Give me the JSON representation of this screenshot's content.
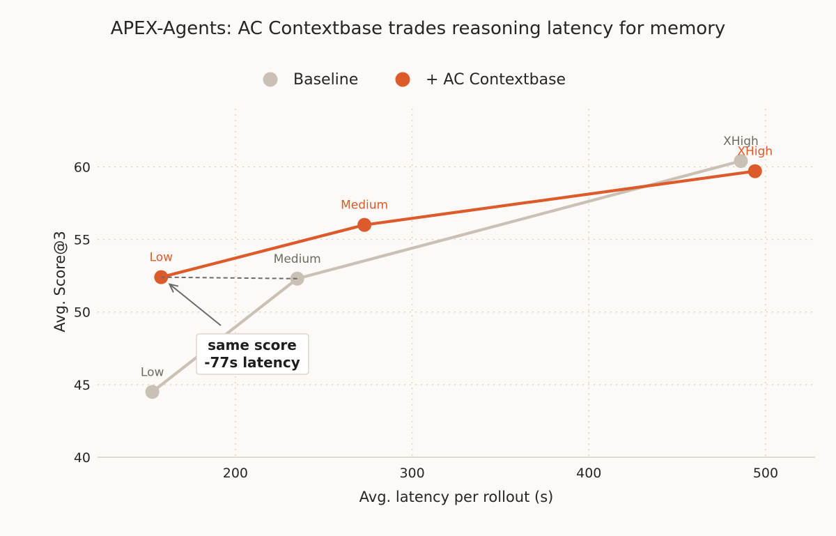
{
  "colors": {
    "baseline": "#c9c1b6",
    "contextbase": "#dd5a2b",
    "baseline_label": "#6e6a66",
    "background": "#fcf9f6"
  },
  "chart_data": {
    "type": "line",
    "title": "APEX-Agents: AC Contextbase trades reasoning latency for memory",
    "xlabel": "Avg. latency per rollout (s)",
    "ylabel": "Avg. Score@3",
    "xlim": [
      122,
      528
    ],
    "ylim": [
      40,
      64
    ],
    "xticks": [
      200,
      300,
      400,
      500
    ],
    "yticks": [
      40,
      45,
      50,
      55,
      60
    ],
    "grid": true,
    "legend_position": "top-center",
    "series": [
      {
        "name": "Baseline",
        "color": "#c9c1b6",
        "points": [
          {
            "x": 153,
            "y": 44.5,
            "label": "Low"
          },
          {
            "x": 235,
            "y": 52.3,
            "label": "Medium"
          },
          {
            "x": 486,
            "y": 60.4,
            "label": "XHigh"
          }
        ]
      },
      {
        "name": "+ AC Contextbase",
        "color": "#dd5a2b",
        "points": [
          {
            "x": 158,
            "y": 52.4,
            "label": "Low"
          },
          {
            "x": 273,
            "y": 56.0,
            "label": "Medium"
          },
          {
            "x": 494,
            "y": 59.7,
            "label": "XHigh"
          }
        ]
      }
    ],
    "annotation": {
      "lines": [
        "same score",
        "-77s latency"
      ]
    }
  }
}
